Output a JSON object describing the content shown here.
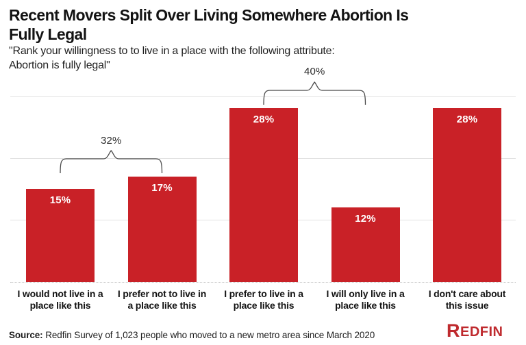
{
  "header": {
    "title": "Recent Movers Split Over Living Somewhere Abortion Is Fully Legal",
    "title_lines": [
      "Recent Movers Split Over Living Somewhere Abortion Is",
      "Fully Legal"
    ],
    "subtitle": "\"Rank your willingness to to live in a place with the following attribute: Abortion is fully legal\"",
    "subtitle_lines": [
      "\"Rank your willingness to to live in a place with the following attribute:",
      "Abortion is fully legal\""
    ]
  },
  "chart_data": {
    "type": "bar",
    "title": "Recent Movers Split Over Living Somewhere Abortion Is Fully Legal",
    "categories": [
      "I would not live in a place like this",
      "I prefer not to live in a place like this",
      "I prefer to live in a place like this",
      "I will only live in a place like this",
      "I don't care about this issue"
    ],
    "category_lines": [
      [
        "I would not live in a",
        "place like this"
      ],
      [
        "I prefer not to live in",
        "a place like this"
      ],
      [
        "I prefer to live in a",
        "place like this"
      ],
      [
        "I will only live in a",
        "place like this"
      ],
      [
        "I don't care about",
        "this issue"
      ]
    ],
    "values": [
      15,
      17,
      28,
      12,
      28
    ],
    "value_labels": [
      "15%",
      "17%",
      "28%",
      "12%",
      "28%"
    ],
    "brackets": [
      {
        "label": "32%",
        "from": 0,
        "to": 1,
        "sum_of": [
          15,
          17
        ]
      },
      {
        "label": "40%",
        "from": 2,
        "to": 3,
        "sum_of": [
          28,
          12
        ]
      }
    ],
    "xlabel": "",
    "ylabel": "",
    "ylim": [
      0,
      30
    ],
    "gridline_values": [
      10,
      20,
      30
    ],
    "grid": true,
    "legend": false,
    "bar_color": "#c92127",
    "value_label_color": "#ffffff",
    "gridline_color": "#e1e1e1",
    "bracket_color": "#4a4a4a"
  },
  "footer": {
    "source_label": "Source:",
    "source_text": " Redfin Survey of 1,023 people who moved to a new metro area since March 2020",
    "logo_text": "REDFIN",
    "logo_color": "#bf2a2e"
  }
}
